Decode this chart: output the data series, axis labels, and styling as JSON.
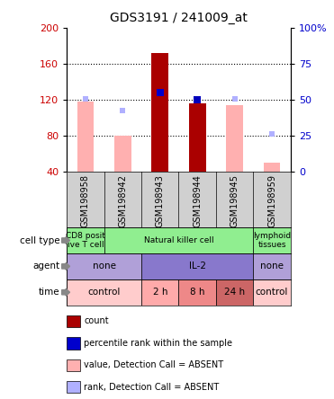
{
  "title": "GDS3191 / 241009_at",
  "samples": [
    "GSM198958",
    "GSM198942",
    "GSM198943",
    "GSM198944",
    "GSM198945",
    "GSM198959"
  ],
  "ylim_left": [
    40,
    200
  ],
  "ylim_right": [
    0,
    100
  ],
  "yticks_left": [
    40,
    80,
    120,
    160,
    200
  ],
  "yticks_right": [
    0,
    25,
    50,
    75,
    100
  ],
  "bar_values": [
    118,
    80,
    172,
    116,
    114,
    50
  ],
  "bar_colors": [
    "#ffb0b0",
    "#ffb0b0",
    "#aa0000",
    "#aa0000",
    "#ffb0b0",
    "#ffb0b0"
  ],
  "rank_values": [
    121,
    108,
    128,
    120,
    121,
    82
  ],
  "rank_colors": [
    "#b0b0ff",
    "#b0b0ff",
    "#0000cc",
    "#0000bb",
    "#b0b0ff",
    "#b0b0ff"
  ],
  "rank_marker_size": [
    18,
    16,
    35,
    40,
    18,
    16
  ],
  "cell_type_groups": [
    {
      "label": "CD8 posit\nive T cell",
      "start": 0,
      "end": 1,
      "color": "#90ee90"
    },
    {
      "label": "Natural killer cell",
      "start": 1,
      "end": 5,
      "color": "#90ee90"
    },
    {
      "label": "lymphoid\ntissues",
      "start": 5,
      "end": 6,
      "color": "#90ee90"
    }
  ],
  "agent_groups": [
    {
      "label": "none",
      "start": 0,
      "end": 2,
      "color": "#b0a0d8"
    },
    {
      "label": "IL-2",
      "start": 2,
      "end": 5,
      "color": "#8878cc"
    },
    {
      "label": "none",
      "start": 5,
      "end": 6,
      "color": "#b0a0d8"
    }
  ],
  "time_groups": [
    {
      "label": "control",
      "start": 0,
      "end": 2,
      "color": "#ffcccc"
    },
    {
      "label": "2 h",
      "start": 2,
      "end": 3,
      "color": "#ffaaaa"
    },
    {
      "label": "8 h",
      "start": 3,
      "end": 4,
      "color": "#ee8888"
    },
    {
      "label": "24 h",
      "start": 4,
      "end": 5,
      "color": "#cc6666"
    },
    {
      "label": "control",
      "start": 5,
      "end": 6,
      "color": "#ffcccc"
    }
  ],
  "row_labels": [
    "cell type",
    "agent",
    "time"
  ],
  "legend_items": [
    {
      "color": "#aa0000",
      "label": "count"
    },
    {
      "color": "#0000cc",
      "label": "percentile rank within the sample"
    },
    {
      "color": "#ffb0b0",
      "label": "value, Detection Call = ABSENT"
    },
    {
      "color": "#b0b0ff",
      "label": "rank, Detection Call = ABSENT"
    }
  ],
  "tick_color_left": "#cc0000",
  "tick_color_right": "#0000cc",
  "sample_bg": "#d0d0d0"
}
